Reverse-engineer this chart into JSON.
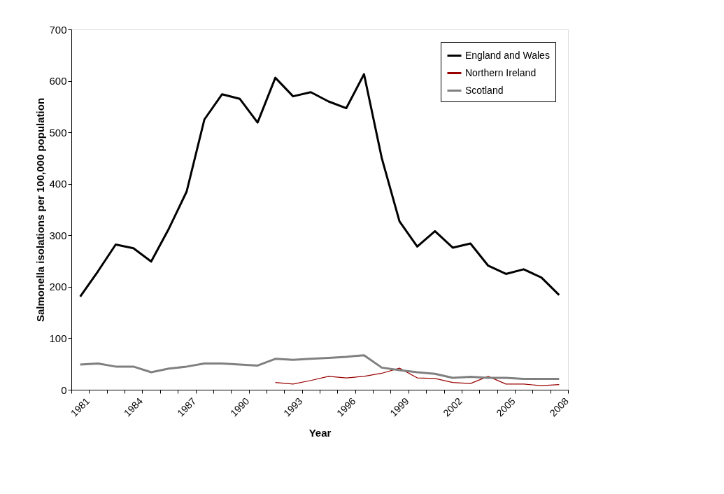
{
  "chart_data": {
    "type": "line",
    "xlabel": "Year",
    "ylabel": "Salmonella isolations per 100,000 population",
    "categories": [
      "1981",
      null,
      null,
      "1984",
      null,
      null,
      "1987",
      null,
      null,
      "1990",
      null,
      null,
      "1993",
      null,
      null,
      "1996",
      null,
      null,
      "1999",
      null,
      null,
      "2002",
      null,
      null,
      "2005",
      null,
      null,
      "2008"
    ],
    "series": [
      {
        "name": "England and Wales",
        "color": "#000000",
        "values": [
          181,
          230,
          282,
          275,
          249,
          313,
          385,
          525,
          574,
          565,
          519,
          606,
          570,
          578,
          560,
          547,
          613,
          450,
          327,
          278,
          308,
          276,
          284,
          241,
          225,
          234,
          218,
          184
        ]
      },
      {
        "name": "Northern Ireland",
        "color": "#990000",
        "values": [
          null,
          null,
          null,
          null,
          null,
          null,
          null,
          null,
          null,
          null,
          null,
          14,
          11,
          18,
          26,
          23,
          26,
          32,
          42,
          23,
          22,
          14,
          12,
          26,
          11,
          11,
          8,
          10
        ]
      },
      {
        "name": "Scotland",
        "color": "#808080",
        "values": [
          49,
          51,
          45,
          45,
          34,
          41,
          45,
          51,
          51,
          49,
          47,
          60,
          58,
          60,
          62,
          64,
          67,
          43,
          38,
          34,
          31,
          23,
          25,
          23,
          23,
          21,
          21,
          21
        ]
      }
    ],
    "ylim": [
      0,
      700
    ],
    "yticks": [
      0,
      100,
      200,
      300,
      400,
      500,
      600,
      700
    ],
    "grid": false,
    "legend": "top right",
    "marker": "none",
    "line_style": "solid"
  }
}
